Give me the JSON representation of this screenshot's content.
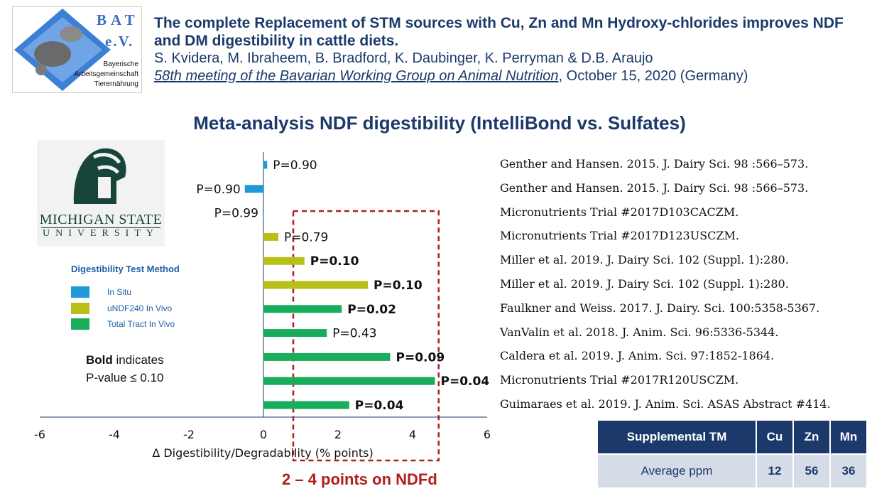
{
  "logo_bat": {
    "title": "BAT",
    "subtitle": "e.V.",
    "line1": "Bayerische",
    "line2": "Arbeitsgemeinschaft",
    "line3": "Tierernährung"
  },
  "header": {
    "title": "The complete Replacement of STM sources with Cu, Zn and Mn Hydroxy-chlorides improves NDF and DM digestibility in cattle diets.",
    "authors": "S. Kvidera, M. Ibraheem, B. Bradford, K. Daubinger, K. Perryman & D.B. Araujo",
    "meeting": "58th meeting of the Bavarian Working Group on Animal Nutrition",
    "meeting_date": ", October 15, 2020 (Germany)"
  },
  "logo_msu": {
    "name": "MICHIGAN STATE",
    "university": "UNIVERSITY"
  },
  "legend": {
    "title": "Digestibility Test Method",
    "items": [
      {
        "label": "In Situ",
        "color": "#1f9ad6"
      },
      {
        "label": "uNDF240 In Vivo",
        "color": "#b8bf17"
      },
      {
        "label": "Total Tract In Vivo",
        "color": "#17ad5a"
      }
    ]
  },
  "bold_note": {
    "bold": "Bold",
    "rest1": " indicates",
    "line2": "P-value ≤ 0.10"
  },
  "chart_data": {
    "type": "bar",
    "orientation": "horizontal",
    "title": "Meta-analysis NDF digestibility (IntelliBond vs. Sulfates)",
    "xlabel": "Δ Digestibility/Degradability (% points)",
    "xlim": [
      -6,
      6
    ],
    "xticks": [
      "-6",
      "-4",
      "-2",
      "0",
      "2",
      "4",
      "6"
    ],
    "bars": [
      {
        "value": 0.1,
        "method": "In Situ",
        "label": "P=0.90",
        "bold": false
      },
      {
        "value": -0.5,
        "method": "In Situ",
        "label": "P=0.90",
        "bold": false
      },
      {
        "value": -0.02,
        "method": "In Situ",
        "label": "P=0.99",
        "bold": false
      },
      {
        "value": 0.4,
        "method": "uNDF240 In Vivo",
        "label": "P=0.79",
        "bold": false
      },
      {
        "value": 1.1,
        "method": "uNDF240 In Vivo",
        "label": "P=0.10",
        "bold": true
      },
      {
        "value": 2.8,
        "method": "uNDF240 In Vivo",
        "label": "P=0.10",
        "bold": true
      },
      {
        "value": 2.1,
        "method": "Total Tract In Vivo",
        "label": "P=0.02",
        "bold": true
      },
      {
        "value": 1.7,
        "method": "Total Tract In Vivo",
        "label": "P=0.43",
        "bold": false
      },
      {
        "value": 3.4,
        "method": "Total Tract In Vivo",
        "label": "P=0.09",
        "bold": true
      },
      {
        "value": 4.6,
        "method": "Total Tract In Vivo",
        "label": "P=0.04",
        "bold": true
      },
      {
        "value": 2.3,
        "method": "Total Tract In Vivo",
        "label": "P=0.04",
        "bold": true
      }
    ],
    "highlight_range": [
      0.8,
      4.7
    ],
    "annotation": "2 – 4 points on NDFd"
  },
  "references": [
    "Genther and Hansen. 2015. J. Dairy Sci. 98 :566–573.",
    "Genther and Hansen. 2015. J. Dairy Sci. 98 :566–573.",
    "Micronutrients Trial #2017D103CACZM.",
    "Micronutrients Trial #2017D123USCZM.",
    "Miller et al. 2019. J. Dairy Sci. 102 (Suppl. 1):280.",
    "Miller et al. 2019. J. Dairy Sci. 102 (Suppl. 1):280.",
    "Faulkner and Weiss. 2017. J. Dairy. Sci. 100:5358-5367.",
    "VanValin et al. 2018. J. Anim. Sci. 96:5336-5344.",
    "Caldera et al. 2019. J. Anim. Sci. 97:1852-1864.",
    "Micronutrients Trial #2017R120USCZM.",
    "Guimaraes et al. 2019. J. Anim. Sci. ASAS Abstract #414."
  ],
  "tm_table": {
    "headers": [
      "Supplemental TM",
      "Cu",
      "Zn",
      "Mn"
    ],
    "row": [
      "Average ppm",
      "12",
      "56",
      "36"
    ]
  },
  "colors": {
    "navy": "#1b3a6b",
    "in_situ": "#1f9ad6",
    "undf240": "#b8bf17",
    "total_tract": "#17ad5a",
    "highlight": "#b01e1e"
  }
}
